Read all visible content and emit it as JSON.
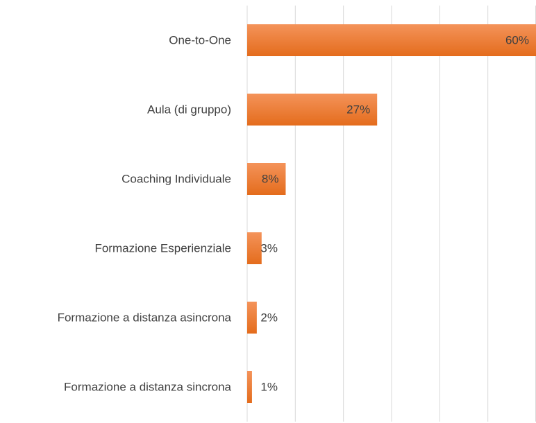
{
  "chart_data": {
    "type": "hbar",
    "categories": [
      "One-to-One",
      "Aula (di gruppo)",
      "Coaching Individuale",
      "Formazione Esperienziale",
      "Formazione a distanza asincrona",
      "Formazione a distanza sincrona"
    ],
    "values": [
      60,
      27,
      8,
      3,
      2,
      1
    ],
    "value_labels": [
      "60%",
      "27%",
      "8%",
      "3%",
      "2%",
      "1%"
    ],
    "color": "#ed7d31",
    "xlim": [
      0,
      60
    ],
    "xticks": [
      0,
      10,
      20,
      30,
      40,
      50,
      60
    ],
    "grid": true
  }
}
